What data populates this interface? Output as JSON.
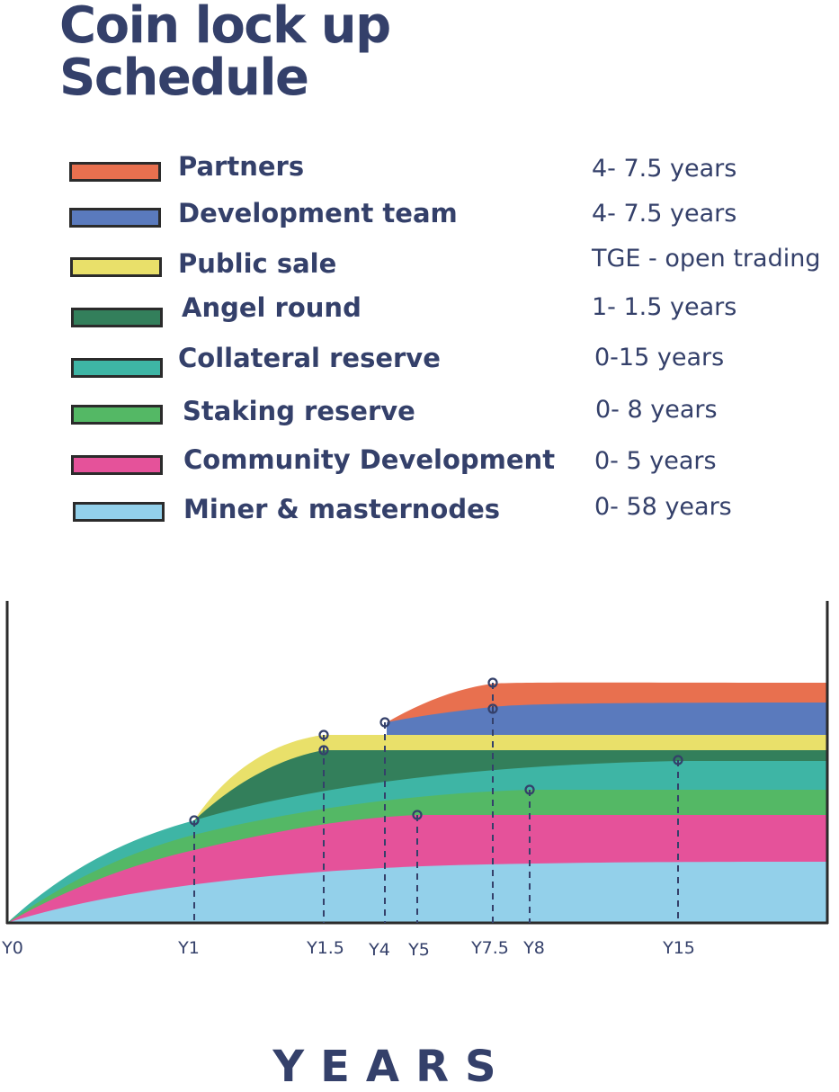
{
  "title": {
    "line1": "Coin lock up",
    "line2": "Schedule"
  },
  "legend": [
    {
      "label": "Partners",
      "duration": "4- 7.5 years",
      "color": "#e8704f"
    },
    {
      "label": "Development team",
      "duration": "4- 7.5 years",
      "color": "#5a7abd"
    },
    {
      "label": "Public sale",
      "duration": "TGE - open trading",
      "color": "#e9e06a"
    },
    {
      "label": "Angel round",
      "duration": "1- 1.5 years",
      "color": "#337f5b"
    },
    {
      "label": "Collateral reserve",
      "duration": "0-15 years",
      "color": "#3eb5a5"
    },
    {
      "label": "Staking reserve",
      "duration": "0- 8 years",
      "color": "#54b865"
    },
    {
      "label": "Community Development",
      "duration": "0- 5 years",
      "color": "#e5529a"
    },
    {
      "label": "Miner & masternodes",
      "duration": "0- 58 years",
      "color": "#93d0ea"
    }
  ],
  "chart_data": {
    "type": "area",
    "stacked": true,
    "x_ticks": [
      "Y0",
      "Y1",
      "Y1.5",
      "Y4",
      "Y5",
      "Y7.5",
      "Y8",
      "Y15"
    ],
    "xlabel": "YEARS",
    "ylabel": "",
    "colors": {
      "miner": "#93d0ea",
      "community": "#e5529a",
      "staking": "#54b865",
      "collateral": "#3eb5a5",
      "angel": "#337f5b",
      "public": "#e9e06a",
      "dev": "#5a7abd",
      "partners": "#e8704f",
      "axis": "#2b2b2b",
      "guide": "#34406a"
    },
    "marker_ticks": [
      "Y1",
      "Y1.5",
      "Y1.5",
      "Y4",
      "Y5",
      "Y7.5",
      "Y7.5",
      "Y8",
      "Y15"
    ]
  },
  "axis_title": "YEARS"
}
